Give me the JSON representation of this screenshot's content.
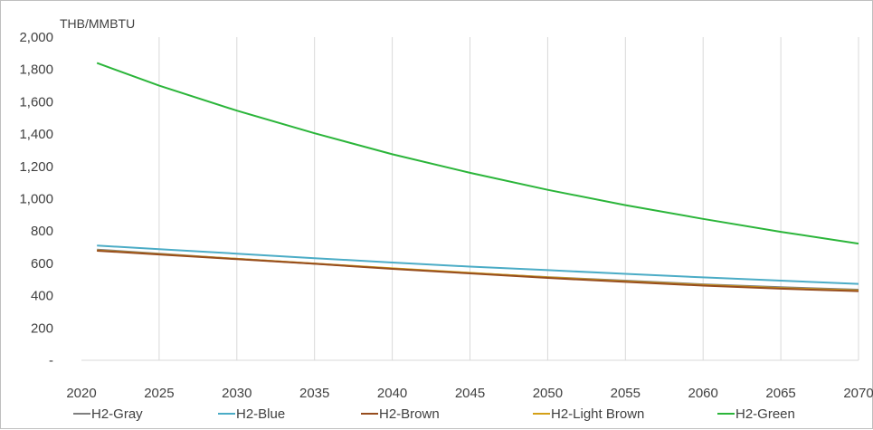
{
  "chart_data": {
    "type": "line",
    "title": "",
    "ylabel": "THB/MMBTU",
    "xlabel": "",
    "x": [
      2021,
      2025,
      2030,
      2035,
      2040,
      2045,
      2050,
      2055,
      2060,
      2065,
      2070
    ],
    "xlim": [
      2020,
      2070
    ],
    "ylim": [
      0,
      2000
    ],
    "x_ticks": [
      2020,
      2025,
      2030,
      2035,
      2040,
      2045,
      2050,
      2055,
      2060,
      2065,
      2070
    ],
    "y_ticks": [
      0,
      200,
      400,
      600,
      800,
      1000,
      1200,
      1400,
      1600,
      1800,
      2000
    ],
    "x_tick_labels": [
      "2020",
      "2025",
      "2030",
      "2035",
      "2040",
      "2045",
      "2050",
      "2055",
      "2060",
      "2065",
      "2070"
    ],
    "y_tick_labels": [
      "-",
      "200",
      "400",
      "600",
      "800",
      "1,000",
      "1,200",
      "1,400",
      "1,600",
      "1,800",
      "2,000"
    ],
    "grid": {
      "vertical": true,
      "horizontal": false
    },
    "legend_position": "bottom",
    "series": [
      {
        "name": "H2-Gray",
        "color": "#7f7f7f",
        "values": [
          685,
          660,
          628,
          598,
          568,
          540,
          515,
          493,
          470,
          452,
          437
        ]
      },
      {
        "name": "H2-Blue",
        "color": "#4bacc6",
        "values": [
          710,
          688,
          660,
          632,
          605,
          580,
          558,
          535,
          513,
          493,
          473
        ]
      },
      {
        "name": "H2-Brown",
        "color": "#974d1e",
        "values": [
          678,
          655,
          626,
          597,
          566,
          538,
          510,
          485,
          462,
          443,
          428
        ]
      },
      {
        "name": "H2-Light Brown",
        "color": "#d4a017",
        "values": [
          680,
          657,
          628,
          599,
          569,
          541,
          513,
          489,
          466,
          447,
          432
        ]
      },
      {
        "name": "H2-Green",
        "color": "#2bb53a",
        "values": [
          1840,
          1700,
          1545,
          1405,
          1275,
          1160,
          1055,
          960,
          875,
          795,
          722
        ]
      }
    ]
  }
}
